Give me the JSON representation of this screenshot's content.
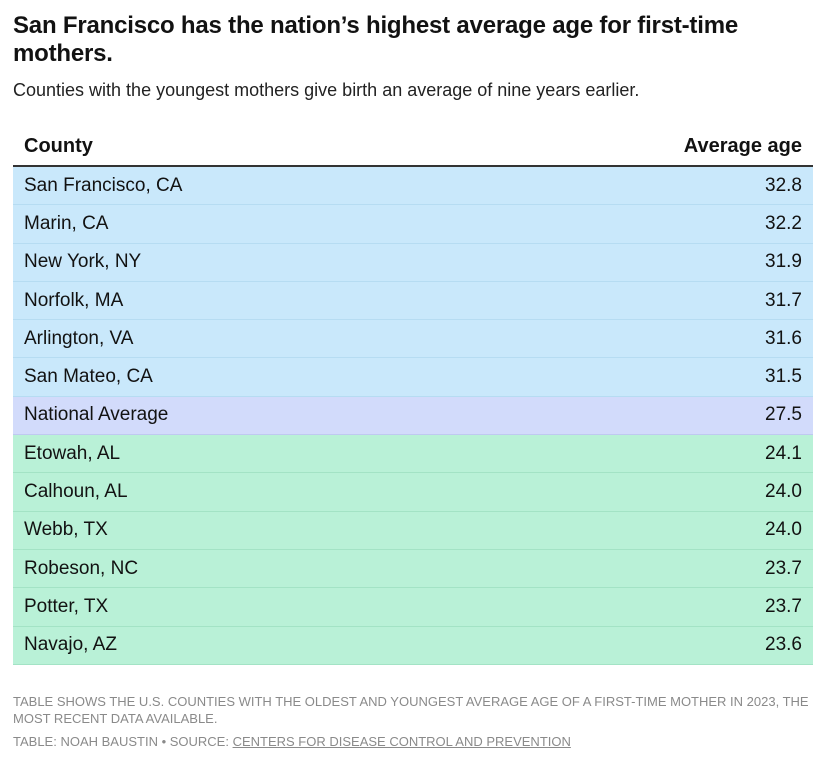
{
  "chart_data": {
    "type": "table",
    "title": "San Francisco has the nation’s highest average age for first-time mothers.",
    "subtitle": "Counties with the youngest mothers give birth an average of nine years earlier.",
    "columns": [
      "County",
      "Average age"
    ],
    "rows": [
      {
        "county": "San Francisco, CA",
        "age": "32.8",
        "group": "old"
      },
      {
        "county": "Marin, CA",
        "age": "32.2",
        "group": "old"
      },
      {
        "county": "New York, NY",
        "age": "31.9",
        "group": "old"
      },
      {
        "county": "Norfolk, MA",
        "age": "31.7",
        "group": "old"
      },
      {
        "county": "Arlington, VA",
        "age": "31.6",
        "group": "old"
      },
      {
        "county": "San Mateo, CA",
        "age": "31.5",
        "group": "old"
      },
      {
        "county": "National Average",
        "age": "27.5",
        "group": "avg"
      },
      {
        "county": "Etowah, AL",
        "age": "24.1",
        "group": "young"
      },
      {
        "county": "Calhoun, AL",
        "age": "24.0",
        "group": "young"
      },
      {
        "county": "Webb, TX",
        "age": "24.0",
        "group": "young"
      },
      {
        "county": "Robeson, NC",
        "age": "23.7",
        "group": "young"
      },
      {
        "county": "Potter, TX",
        "age": "23.7",
        "group": "young"
      },
      {
        "county": "Navajo, AZ",
        "age": "23.6",
        "group": "young"
      }
    ],
    "colors": {
      "old": "#c9e8fb",
      "avg": "#d2dbfb",
      "young": "#b9f1d7"
    }
  },
  "notes": "Table shows the U.S. counties with the oldest and youngest average age of a first-time mother in 2023, the most recent data available.",
  "credit": {
    "prefix": "Table: Noah Baustin • Source: ",
    "source_link": "Centers for Disease Control and Prevention"
  }
}
